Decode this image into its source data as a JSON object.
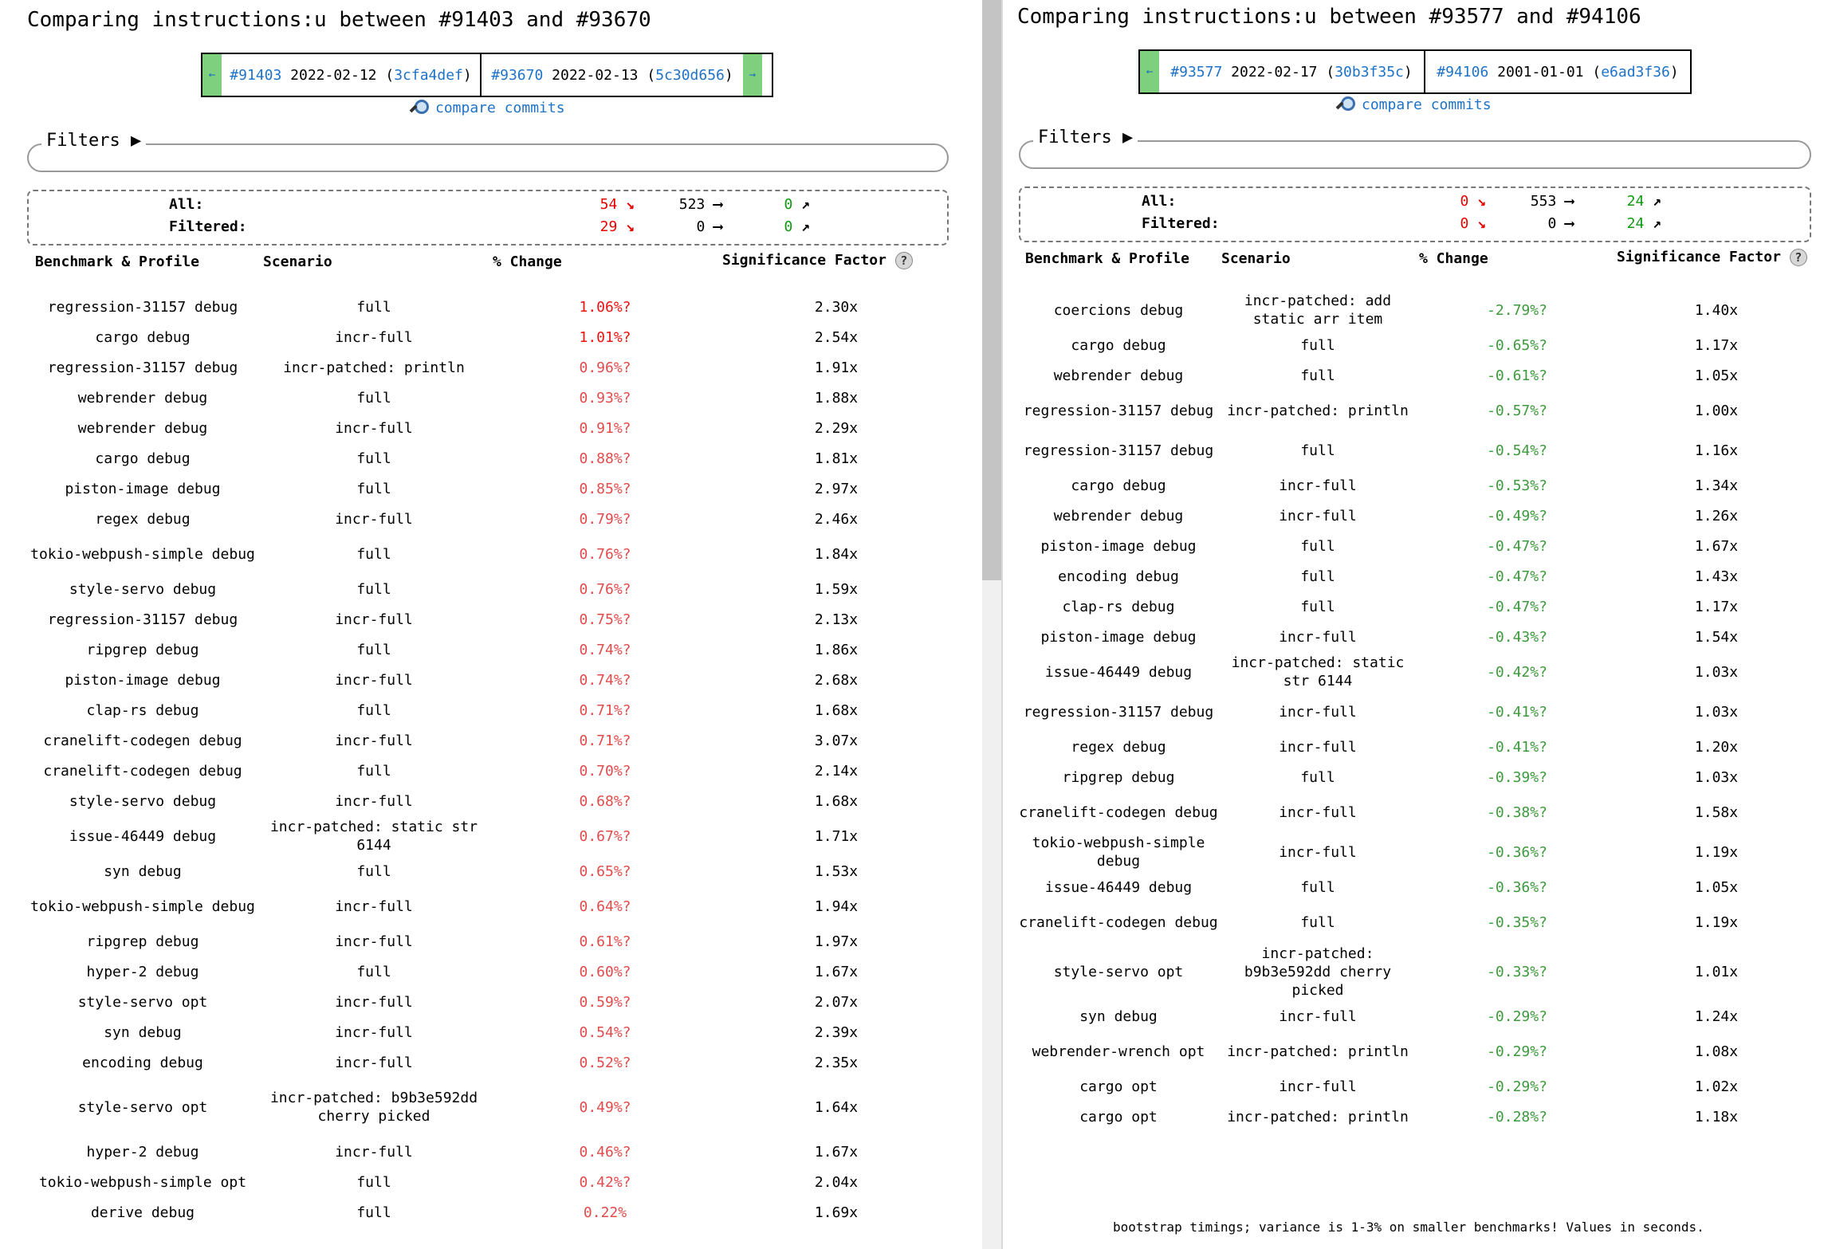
{
  "left": {
    "title": "Comparing instructions:u between #91403 and #93670",
    "nav": {
      "prev_arrow": "←",
      "next_arrow": "→",
      "a": {
        "pr": "#91403",
        "date": "2022-02-12",
        "open": " (",
        "sha": "3cfa4def",
        "close": ")"
      },
      "b": {
        "pr": "#93670",
        "date": "2022-02-13",
        "open": " (",
        "sha": "5c30d656",
        "close": ")"
      }
    },
    "compare_commits": "compare commits",
    "filters_label": "Filters ▶",
    "summary": {
      "all_label": "All:",
      "filtered_label": "Filtered:",
      "all": {
        "regressions": "54",
        "unchanged": "523",
        "improvements": "0"
      },
      "filtered": {
        "regressions": "29",
        "unchanged": "0",
        "improvements": "0"
      }
    },
    "headers": {
      "benchmark": "Benchmark & Profile",
      "scenario": "Scenario",
      "change": "% Change",
      "significance": "Significance Factor",
      "help": "?"
    },
    "rows": [
      {
        "benchmark": "regression-31157 debug",
        "scenario": "full",
        "change": "1.06%?",
        "factor": "2.30x"
      },
      {
        "benchmark": "cargo debug",
        "scenario": "incr-full",
        "change": "1.01%?",
        "factor": "2.54x"
      },
      {
        "benchmark": "regression-31157 debug",
        "scenario": "incr-patched: println",
        "change": "0.96%?",
        "factor": "1.91x"
      },
      {
        "benchmark": "webrender debug",
        "scenario": "full",
        "change": "0.93%?",
        "factor": "1.88x"
      },
      {
        "benchmark": "webrender debug",
        "scenario": "incr-full",
        "change": "0.91%?",
        "factor": "2.29x"
      },
      {
        "benchmark": "cargo debug",
        "scenario": "full",
        "change": "0.88%?",
        "factor": "1.81x"
      },
      {
        "benchmark": "piston-image debug",
        "scenario": "full",
        "change": "0.85%?",
        "factor": "2.97x"
      },
      {
        "benchmark": "regex debug",
        "scenario": "incr-full",
        "change": "0.79%?",
        "factor": "2.46x"
      },
      {
        "benchmark": "tokio-webpush-simple debug",
        "scenario": "full",
        "change": "0.76%?",
        "factor": "1.84x"
      },
      {
        "benchmark": "style-servo debug",
        "scenario": "full",
        "change": "0.76%?",
        "factor": "1.59x"
      },
      {
        "benchmark": "regression-31157 debug",
        "scenario": "incr-full",
        "change": "0.75%?",
        "factor": "2.13x"
      },
      {
        "benchmark": "ripgrep debug",
        "scenario": "full",
        "change": "0.74%?",
        "factor": "1.86x"
      },
      {
        "benchmark": "piston-image debug",
        "scenario": "incr-full",
        "change": "0.74%?",
        "factor": "2.68x"
      },
      {
        "benchmark": "clap-rs debug",
        "scenario": "full",
        "change": "0.71%?",
        "factor": "1.68x"
      },
      {
        "benchmark": "cranelift-codegen debug",
        "scenario": "incr-full",
        "change": "0.71%?",
        "factor": "3.07x"
      },
      {
        "benchmark": "cranelift-codegen debug",
        "scenario": "full",
        "change": "0.70%?",
        "factor": "2.14x"
      },
      {
        "benchmark": "style-servo debug",
        "scenario": "incr-full",
        "change": "0.68%?",
        "factor": "1.68x"
      },
      {
        "benchmark": "issue-46449 debug",
        "scenario": "incr-patched: static str 6144",
        "change": "0.67%?",
        "factor": "1.71x"
      },
      {
        "benchmark": "syn debug",
        "scenario": "full",
        "change": "0.65%?",
        "factor": "1.53x"
      },
      {
        "benchmark": "tokio-webpush-simple debug",
        "scenario": "incr-full",
        "change": "0.64%?",
        "factor": "1.94x"
      },
      {
        "benchmark": "ripgrep debug",
        "scenario": "incr-full",
        "change": "0.61%?",
        "factor": "1.97x"
      },
      {
        "benchmark": "hyper-2 debug",
        "scenario": "full",
        "change": "0.60%?",
        "factor": "1.67x"
      },
      {
        "benchmark": "style-servo opt",
        "scenario": "incr-full",
        "change": "0.59%?",
        "factor": "2.07x"
      },
      {
        "benchmark": "syn debug",
        "scenario": "incr-full",
        "change": "0.54%?",
        "factor": "2.39x"
      },
      {
        "benchmark": "encoding debug",
        "scenario": "incr-full",
        "change": "0.52%?",
        "factor": "2.35x"
      },
      {
        "benchmark": "style-servo opt",
        "scenario": "incr-patched: b9b3e592dd cherry picked",
        "change": "0.49%?",
        "factor": "1.64x"
      },
      {
        "benchmark": "hyper-2 debug",
        "scenario": "incr-full",
        "change": "0.46%?",
        "factor": "1.67x"
      },
      {
        "benchmark": "tokio-webpush-simple opt",
        "scenario": "full",
        "change": "0.42%?",
        "factor": "2.04x"
      },
      {
        "benchmark": "derive debug",
        "scenario": "full",
        "change": "0.22%",
        "factor": "1.69x"
      }
    ]
  },
  "right": {
    "title": "Comparing instructions:u between #93577 and #94106",
    "nav": {
      "prev_arrow": "←",
      "a": {
        "pr": "#93577",
        "date": "2022-02-17",
        "open": " (",
        "sha": "30b3f35c",
        "close": ")"
      },
      "b": {
        "pr": "#94106",
        "date": "2001-01-01",
        "open": " (",
        "sha": "e6ad3f36",
        "close": ")"
      }
    },
    "compare_commits": "compare commits",
    "filters_label": "Filters ▶",
    "summary": {
      "all_label": "All:",
      "filtered_label": "Filtered:",
      "all": {
        "regressions": "0",
        "unchanged": "553",
        "improvements": "24"
      },
      "filtered": {
        "regressions": "0",
        "unchanged": "0",
        "improvements": "24"
      }
    },
    "headers": {
      "benchmark": "Benchmark & Profile",
      "scenario": "Scenario",
      "change": "% Change",
      "significance": "Significance Factor",
      "help": "?"
    },
    "rows": [
      {
        "benchmark": "coercions debug",
        "scenario": "incr-patched: add static arr item",
        "change": "-2.79%?",
        "factor": "1.40x"
      },
      {
        "benchmark": "cargo debug",
        "scenario": "full",
        "change": "-0.65%?",
        "factor": "1.17x"
      },
      {
        "benchmark": "webrender debug",
        "scenario": "full",
        "change": "-0.61%?",
        "factor": "1.05x"
      },
      {
        "benchmark": "regression-31157 debug",
        "scenario": "incr-patched: println",
        "change": "-0.57%?",
        "factor": "1.00x"
      },
      {
        "benchmark": "regression-31157 debug",
        "scenario": "full",
        "change": "-0.54%?",
        "factor": "1.16x"
      },
      {
        "benchmark": "cargo debug",
        "scenario": "incr-full",
        "change": "-0.53%?",
        "factor": "1.34x"
      },
      {
        "benchmark": "webrender debug",
        "scenario": "incr-full",
        "change": "-0.49%?",
        "factor": "1.26x"
      },
      {
        "benchmark": "piston-image debug",
        "scenario": "full",
        "change": "-0.47%?",
        "factor": "1.67x"
      },
      {
        "benchmark": "encoding debug",
        "scenario": "full",
        "change": "-0.47%?",
        "factor": "1.43x"
      },
      {
        "benchmark": "clap-rs debug",
        "scenario": "full",
        "change": "-0.47%?",
        "factor": "1.17x"
      },
      {
        "benchmark": "piston-image debug",
        "scenario": "incr-full",
        "change": "-0.43%?",
        "factor": "1.54x"
      },
      {
        "benchmark": "issue-46449 debug",
        "scenario": "incr-patched: static str 6144",
        "change": "-0.42%?",
        "factor": "1.03x"
      },
      {
        "benchmark": "regression-31157 debug",
        "scenario": "incr-full",
        "change": "-0.41%?",
        "factor": "1.03x"
      },
      {
        "benchmark": "regex debug",
        "scenario": "incr-full",
        "change": "-0.41%?",
        "factor": "1.20x"
      },
      {
        "benchmark": "ripgrep debug",
        "scenario": "full",
        "change": "-0.39%?",
        "factor": "1.03x"
      },
      {
        "benchmark": "cranelift-codegen debug",
        "scenario": "incr-full",
        "change": "-0.38%?",
        "factor": "1.58x"
      },
      {
        "benchmark": "tokio-webpush-simple debug",
        "scenario": "incr-full",
        "change": "-0.36%?",
        "factor": "1.19x"
      },
      {
        "benchmark": "issue-46449 debug",
        "scenario": "full",
        "change": "-0.36%?",
        "factor": "1.05x"
      },
      {
        "benchmark": "cranelift-codegen debug",
        "scenario": "full",
        "change": "-0.35%?",
        "factor": "1.19x"
      },
      {
        "benchmark": "style-servo opt",
        "scenario": "incr-patched: b9b3e592dd cherry picked",
        "change": "-0.33%?",
        "factor": "1.01x"
      },
      {
        "benchmark": "syn debug",
        "scenario": "incr-full",
        "change": "-0.29%?",
        "factor": "1.24x"
      },
      {
        "benchmark": "webrender-wrench opt",
        "scenario": "incr-patched: println",
        "change": "-0.29%?",
        "factor": "1.08x"
      },
      {
        "benchmark": "cargo opt",
        "scenario": "incr-full",
        "change": "-0.29%?",
        "factor": "1.02x"
      },
      {
        "benchmark": "cargo opt",
        "scenario": "incr-patched: println",
        "change": "-0.28%?",
        "factor": "1.18x"
      }
    ],
    "footer": "bootstrap timings; variance is 1-3% on smaller benchmarks! Values in seconds."
  },
  "colors": {
    "regression": "#e24b4b",
    "regression_strong": "#ee1111",
    "improvement": "#3c9a3c",
    "link": "#1e73c8",
    "nav_arrow_bg": "#7ecf7e"
  },
  "icons": {
    "trend_down": "trend-down-icon",
    "trend_flat": "arrow-right-icon",
    "trend_up": "trend-up-icon",
    "lens": "magnifier-icon",
    "help": "question-icon"
  }
}
